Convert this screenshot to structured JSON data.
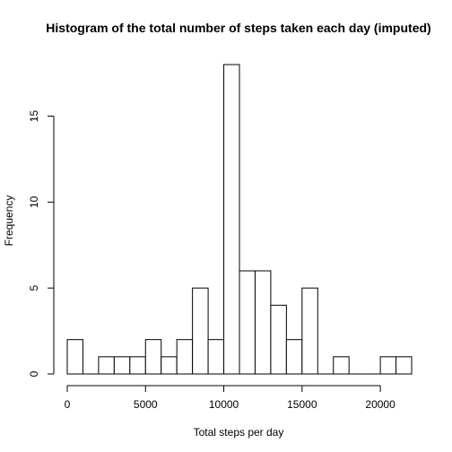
{
  "chart_data": {
    "type": "bar",
    "title": "Histogram of the total number of steps taken each day (imputed)",
    "xlabel": "Total steps per day",
    "ylabel": "Frequency",
    "bin_width": 1000,
    "x_range": [
      0,
      22000
    ],
    "xlim": [
      0,
      22000
    ],
    "ylim": [
      0,
      18
    ],
    "x_ticks": [
      0,
      5000,
      10000,
      15000,
      20000
    ],
    "y_ticks": [
      0,
      5,
      10,
      15
    ],
    "bins": [
      {
        "start": 0,
        "end": 1000,
        "count": 2
      },
      {
        "start": 1000,
        "end": 2000,
        "count": 0
      },
      {
        "start": 2000,
        "end": 3000,
        "count": 1
      },
      {
        "start": 3000,
        "end": 4000,
        "count": 1
      },
      {
        "start": 4000,
        "end": 5000,
        "count": 1
      },
      {
        "start": 5000,
        "end": 6000,
        "count": 2
      },
      {
        "start": 6000,
        "end": 7000,
        "count": 1
      },
      {
        "start": 7000,
        "end": 8000,
        "count": 2
      },
      {
        "start": 8000,
        "end": 9000,
        "count": 5
      },
      {
        "start": 9000,
        "end": 10000,
        "count": 2
      },
      {
        "start": 10000,
        "end": 11000,
        "count": 18
      },
      {
        "start": 11000,
        "end": 12000,
        "count": 6
      },
      {
        "start": 12000,
        "end": 13000,
        "count": 6
      },
      {
        "start": 13000,
        "end": 14000,
        "count": 4
      },
      {
        "start": 14000,
        "end": 15000,
        "count": 2
      },
      {
        "start": 15000,
        "end": 16000,
        "count": 5
      },
      {
        "start": 16000,
        "end": 17000,
        "count": 0
      },
      {
        "start": 17000,
        "end": 18000,
        "count": 1
      },
      {
        "start": 18000,
        "end": 19000,
        "count": 0
      },
      {
        "start": 19000,
        "end": 20000,
        "count": 0
      },
      {
        "start": 20000,
        "end": 21000,
        "count": 1
      },
      {
        "start": 21000,
        "end": 22000,
        "count": 1
      }
    ]
  }
}
